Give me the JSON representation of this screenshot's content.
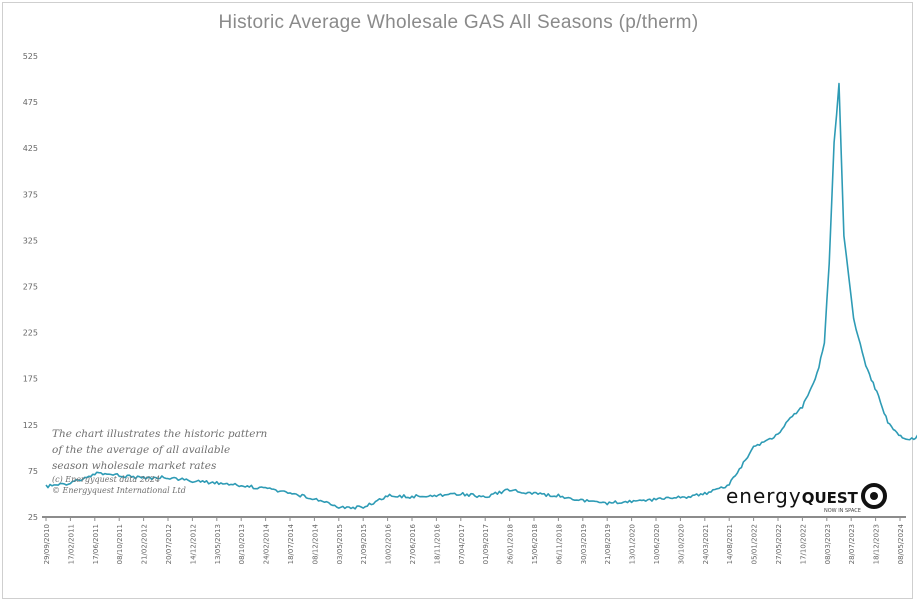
{
  "chart_data": {
    "type": "line",
    "title": "Historic Average Wholesale GAS All Seasons (p/therm)",
    "xlabel": "",
    "ylabel": "",
    "ylim": [
      25,
      525
    ],
    "yticks": [
      25,
      75,
      125,
      175,
      225,
      275,
      325,
      375,
      425,
      475,
      525
    ],
    "xticks": [
      "29/09/2010",
      "17/02/2011",
      "17/06/2011",
      "08/10/2011",
      "21/02/2012",
      "20/07/2012",
      "14/12/2012",
      "13/05/2013",
      "08/10/2013",
      "24/02/2014",
      "18/07/2014",
      "08/12/2014",
      "03/05/2015",
      "21/09/2015",
      "10/02/2016",
      "27/06/2016",
      "18/11/2016",
      "07/04/2017",
      "01/09/2017",
      "26/01/2018",
      "15/06/2018",
      "06/11/2018",
      "30/03/2019",
      "21/08/2019",
      "13/01/2020",
      "10/06/2020",
      "30/10/2020",
      "24/03/2021",
      "14/08/2021",
      "05/01/2022",
      "27/05/2022",
      "17/10/2022",
      "08/03/2023",
      "28/07/2023",
      "18/12/2023",
      "08/05/2024"
    ],
    "grid": false,
    "legend": "none",
    "line_color": "#2e9bb5",
    "series": [
      {
        "x_index": [
          0,
          1,
          2,
          3,
          4,
          5,
          6,
          7,
          8,
          9,
          10,
          11,
          12,
          13,
          14,
          15,
          16,
          17,
          18,
          19,
          20,
          21,
          22,
          23,
          24,
          25,
          26,
          27,
          28,
          29,
          30,
          30.5,
          31,
          31.3,
          31.6,
          31.9,
          32.1,
          32.3,
          32.5,
          32.7,
          32.9,
          33.1,
          33.3,
          33.6,
          33.9,
          34.2,
          34.5,
          34.8,
          35.1,
          35.4,
          35.8,
          36.2,
          36.6,
          37,
          37.4,
          37.8,
          38.2,
          38.6,
          39,
          39.4,
          39.8,
          40.2,
          40.6,
          41,
          41.4,
          41.8,
          42.2,
          42.6,
          43
        ],
        "values": [
          58,
          62,
          72,
          70,
          67,
          68,
          64,
          62,
          59,
          56,
          51,
          45,
          36,
          35,
          48,
          47,
          49,
          50,
          47,
          55,
          50,
          48,
          43,
          40,
          42,
          44,
          46,
          50,
          60,
          100,
          115,
          132,
          145,
          160,
          180,
          215,
          300,
          430,
          495,
          330,
          285,
          240,
          220,
          190,
          170,
          150,
          128,
          118,
          112,
          108,
          114,
          116,
          110,
          100,
          95,
          88,
          80,
          72,
          74,
          78,
          82,
          86,
          88,
          90,
          92,
          91,
          90,
          86,
          85
        ]
      }
    ],
    "annotation": {
      "lines": [
        "The chart illustrates the historic pattern",
        "of the the average of all available",
        "season wholesale market rates"
      ],
      "small": [
        "(c) Energyquest data 2024",
        "© Energyquest International Ltd"
      ]
    },
    "logo": {
      "brand": "energy",
      "brand_bold": "QUEST",
      "tagline": "NOW IN SPACE"
    }
  }
}
